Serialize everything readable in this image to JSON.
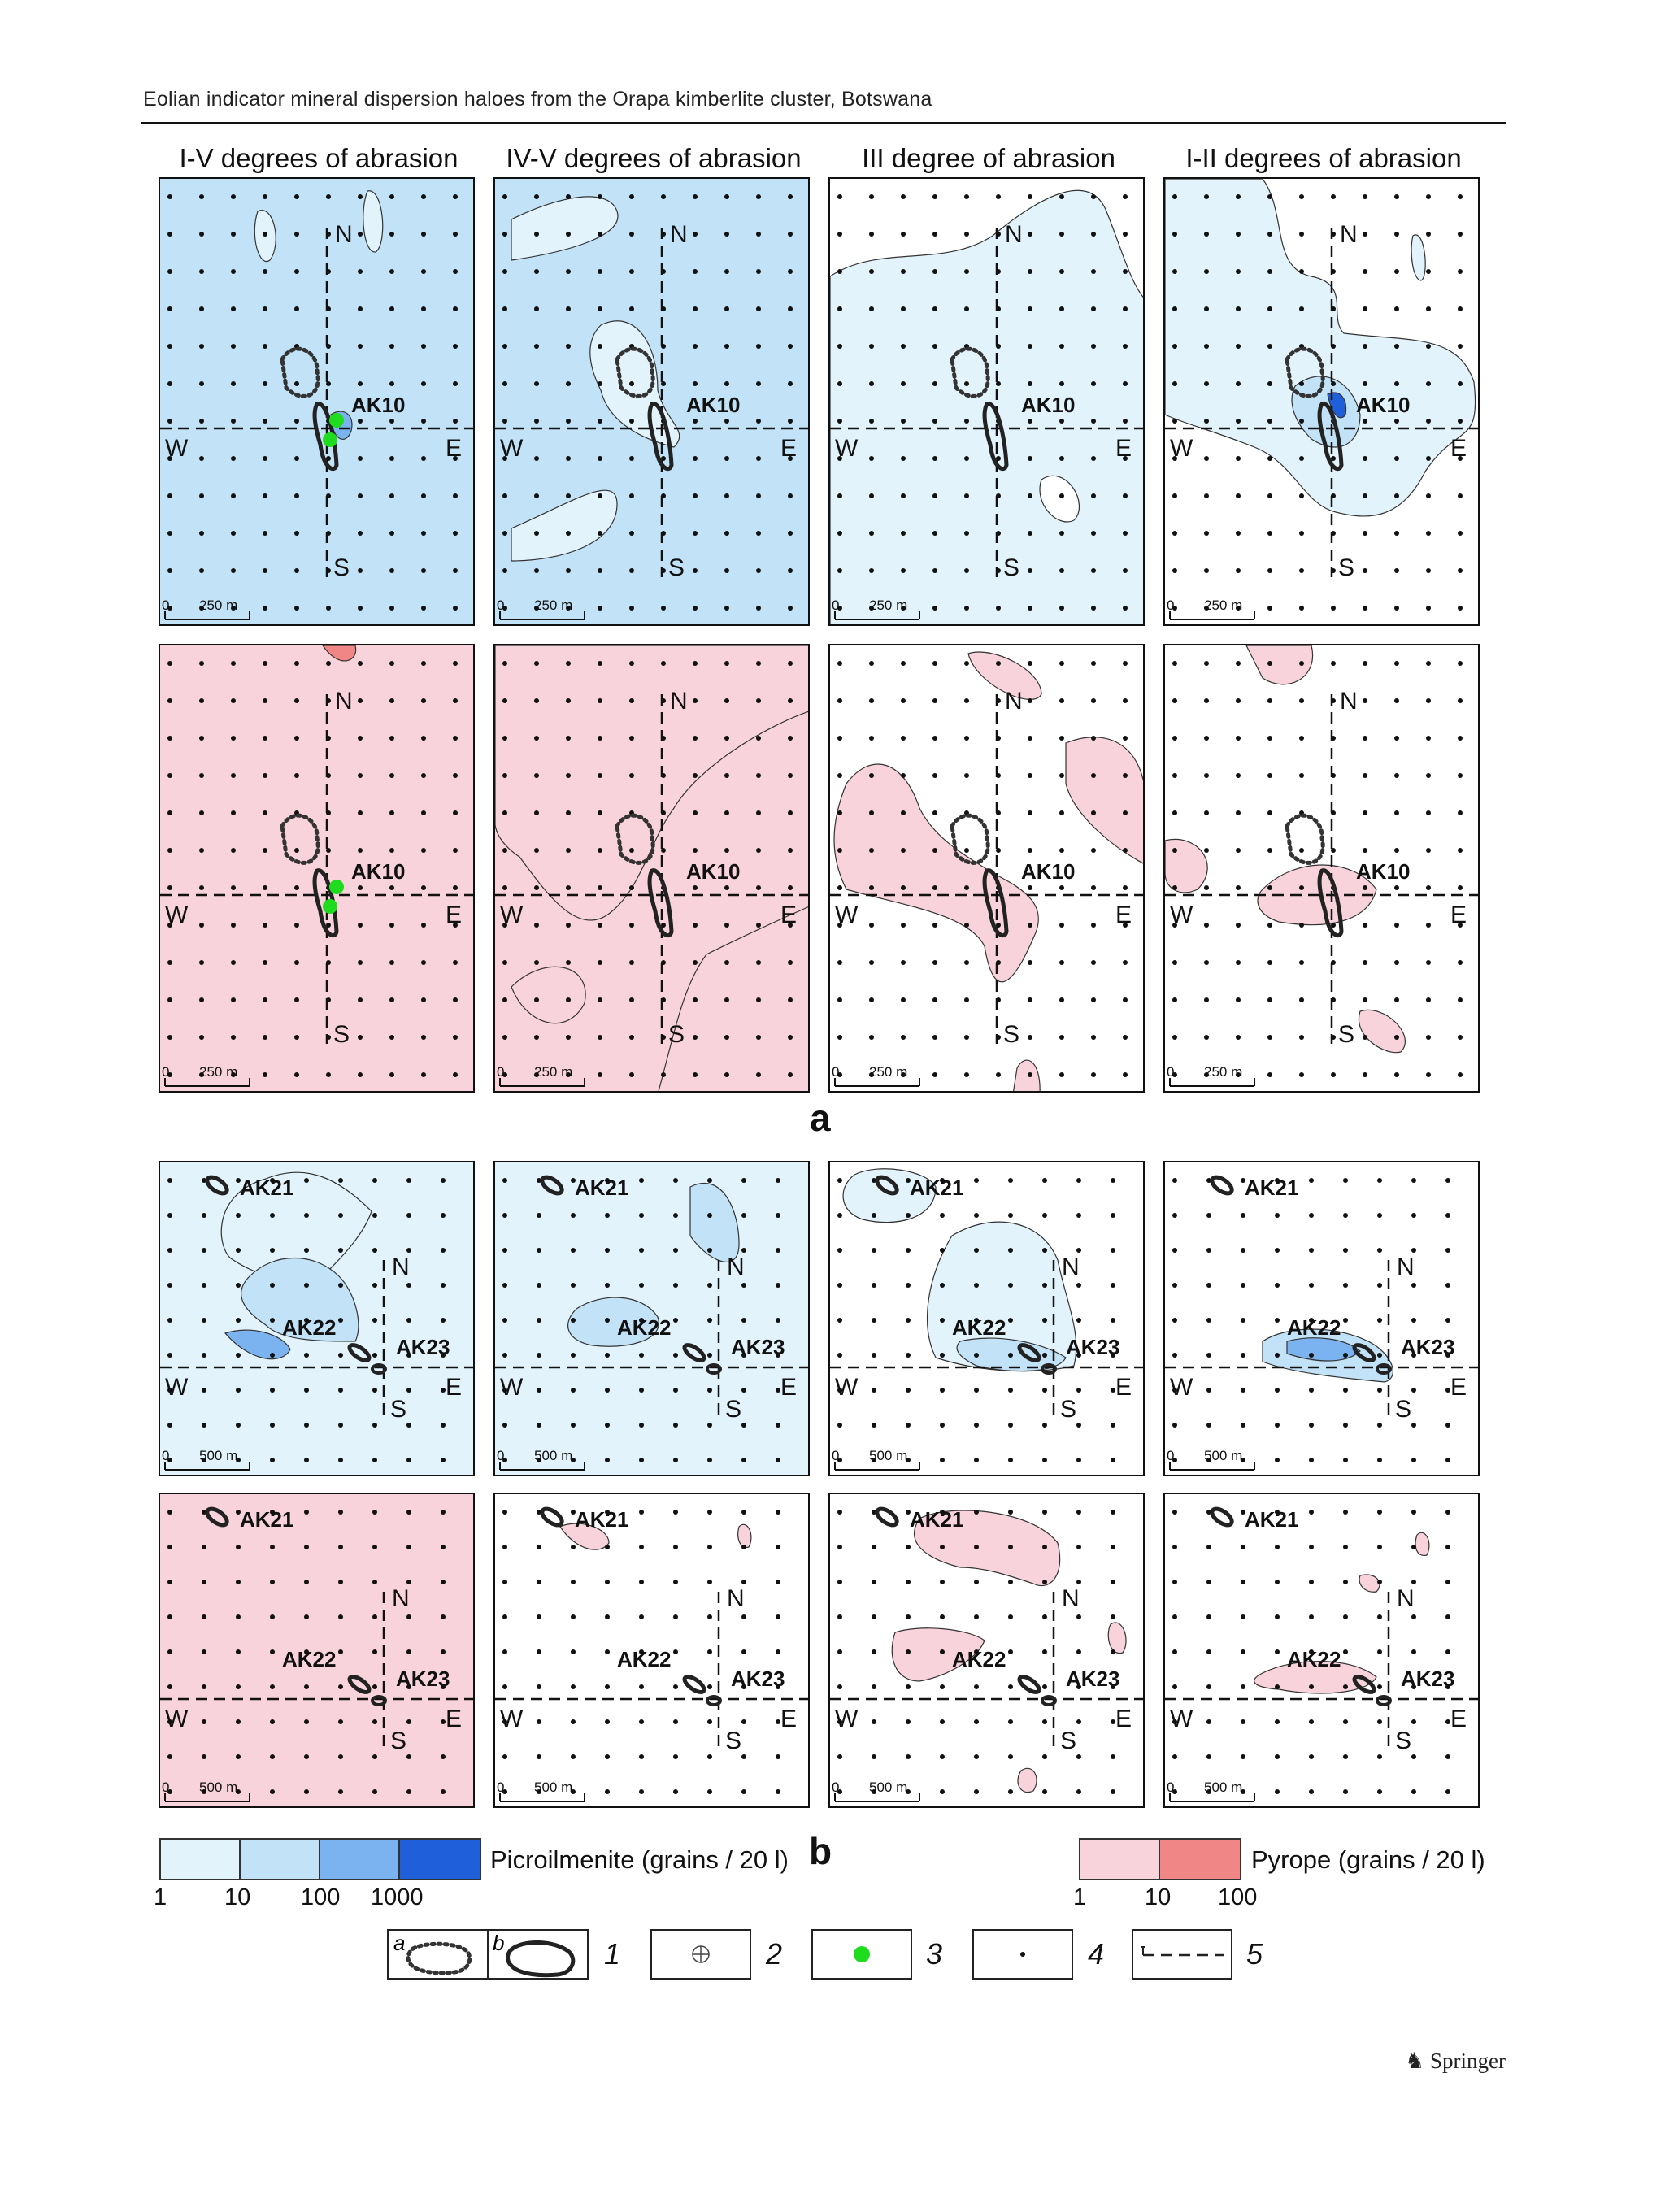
{
  "running_head": "Eolian indicator mineral dispersion haloes from the Orapa kimberlite cluster, Botswana",
  "column_titles": [
    "I-V degrees of abrasion",
    "IV-V degrees of abrasion",
    "III degree of abrasion",
    "I-II degrees of abrasion"
  ],
  "panel_labels": {
    "north": "N",
    "south": "S",
    "east": "E",
    "west": "W",
    "scale_zero": "0",
    "scale_a": "250 m",
    "scale_b": "500 m",
    "pipe_a": "AK10",
    "pipes_b": [
      "AK21",
      "AK22",
      "AK23"
    ]
  },
  "sublabel_a": "a",
  "sublabel_b": "b",
  "legend": {
    "picroilmenite": {
      "title": "Picroilmenite (grains / 20 l)",
      "ticks": [
        "1",
        "10",
        "100",
        "1000"
      ],
      "colors": [
        "#e3f3fc",
        "#c2e2f7",
        "#7ab3ef",
        "#1f5fd9"
      ]
    },
    "pyrope": {
      "title": "Pyrope (grains / 20 l)",
      "ticks": [
        "1",
        "10",
        "100"
      ],
      "colors": [
        "#f9d3db",
        "#f18686"
      ]
    },
    "symbols": [
      {
        "letters": [
          "a",
          "b"
        ],
        "number": "1"
      },
      {
        "number": "2"
      },
      {
        "number": "3"
      },
      {
        "number": "4"
      },
      {
        "number": "5"
      }
    ]
  },
  "colors": {
    "pic_low": "#e3f3fc",
    "pic_mid": "#c2e2f7",
    "pic_high": "#7ab3ef",
    "pic_top": "#1f5fd9",
    "pyr_low": "#f9d3db",
    "pyr_high": "#f18686",
    "green": "#1fdc1f"
  },
  "publisher": "Springer"
}
